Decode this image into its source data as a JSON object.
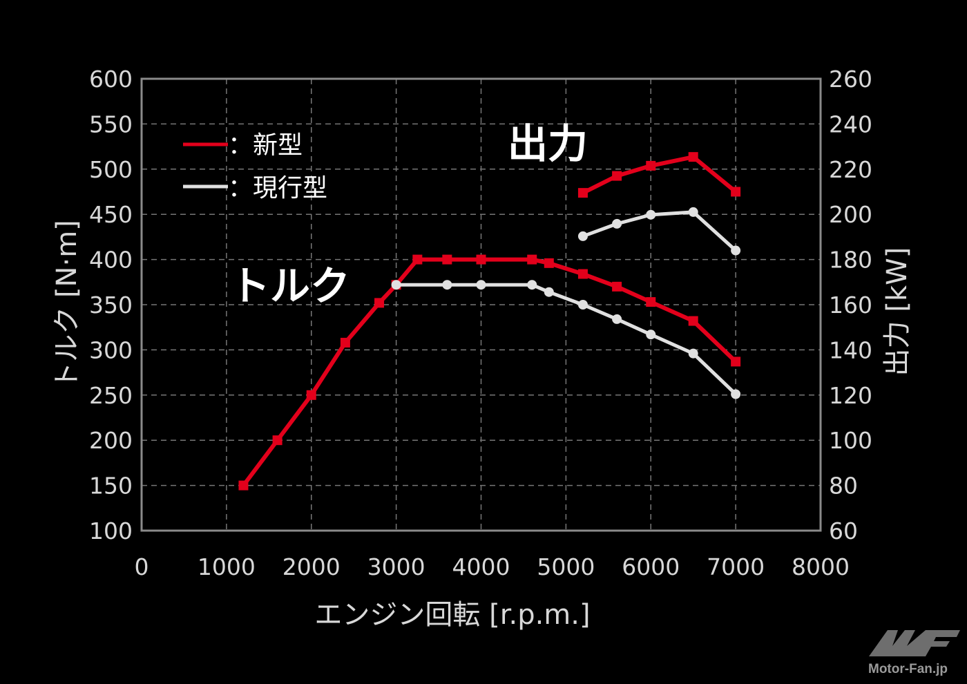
{
  "chart_data": {
    "type": "line",
    "title": "",
    "xlabel": "エンジン回転 [r.p.m.]",
    "ylabel": "トルク [N·m]",
    "y2label": "出力 [kW]",
    "xlim": [
      0,
      8000
    ],
    "ylim": [
      100,
      600
    ],
    "y2lim": [
      60,
      260
    ],
    "xticks": [
      "0",
      "1000",
      "2000",
      "3000",
      "4000",
      "5000",
      "6000",
      "7000",
      "8000"
    ],
    "yticks": [
      "100",
      "150",
      "200",
      "250",
      "300",
      "350",
      "400",
      "450",
      "500",
      "550",
      "600"
    ],
    "y2ticks": [
      "60",
      "80",
      "100",
      "120",
      "140",
      "160",
      "180",
      "200",
      "220",
      "240",
      "260"
    ],
    "grid": true,
    "legend": {
      "position": "top-left",
      "entries": [
        {
          "label": "：新型",
          "color": "#e3001b"
        },
        {
          "label": "：現行型",
          "color": "#e0e0e0"
        }
      ]
    },
    "annotations": {
      "power": "出力",
      "torque": "トルク"
    },
    "series": [
      {
        "name": "新型 トルク",
        "axis": "left",
        "color": "#e3001b",
        "marker": "square",
        "x": [
          1200,
          1600,
          2000,
          2400,
          2800,
          3000,
          3250,
          3600,
          4000,
          4600,
          4800,
          5200,
          5600,
          6000,
          6500,
          7000
        ],
        "y": [
          150,
          200,
          250,
          308,
          352,
          372,
          400,
          400,
          400,
          400,
          396,
          384,
          370,
          353,
          332,
          287
        ]
      },
      {
        "name": "現行型 トルク",
        "axis": "left",
        "color": "#e0e0e0",
        "marker": "circle",
        "x": [
          3000,
          3600,
          4000,
          4600,
          4800,
          5200,
          5600,
          6000,
          6500,
          7000
        ],
        "y": [
          372,
          372,
          372,
          372,
          364,
          350,
          334,
          317,
          296,
          251
        ]
      },
      {
        "name": "新型 出力",
        "axis": "right",
        "color": "#e3001b",
        "marker": "square",
        "x": [
          5200,
          5600,
          6000,
          6500,
          7000
        ],
        "y": [
          209.5,
          217,
          221.5,
          225.4,
          210
        ]
      },
      {
        "name": "現行型 出力",
        "axis": "right",
        "color": "#e0e0e0",
        "marker": "circle",
        "x": [
          5200,
          5600,
          6000,
          6500,
          7000
        ],
        "y": [
          190.3,
          195.8,
          199.8,
          201,
          184
        ]
      }
    ]
  },
  "logo": {
    "text": "Motor-Fan.jp",
    "mark": "MF"
  }
}
